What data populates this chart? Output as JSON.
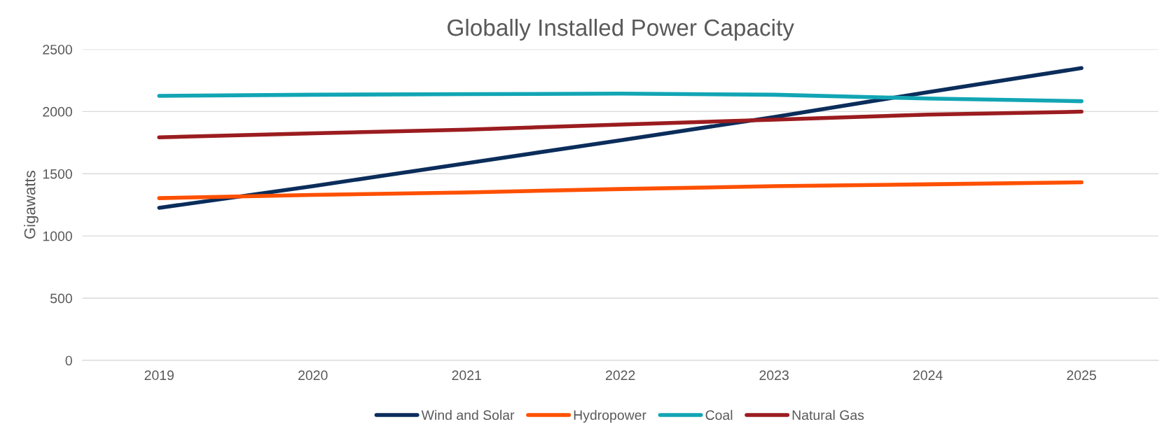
{
  "chart_data": {
    "type": "line",
    "title": "Globally Installed Power Capacity",
    "ylabel": "Gigawatts",
    "categories": [
      "2019",
      "2020",
      "2021",
      "2022",
      "2023",
      "2024",
      "2025"
    ],
    "series": [
      {
        "name": "Wind and Solar",
        "color": "#0b2d5b",
        "values": [
          1226,
          1400,
          1585,
          1769,
          1956,
          2156,
          2349
        ]
      },
      {
        "name": "Hydropower",
        "color": "#fe5000",
        "values": [
          1304,
          1330,
          1350,
          1377,
          1400,
          1415,
          1431
        ]
      },
      {
        "name": "Coal",
        "color": "#12a5b4",
        "values": [
          2126,
          2135,
          2140,
          2144,
          2135,
          2105,
          2083
        ]
      },
      {
        "name": "Natural Gas",
        "color": "#9b1c1f",
        "values": [
          1793,
          1825,
          1855,
          1895,
          1935,
          1975,
          1999
        ]
      }
    ],
    "ylim": [
      0,
      2500
    ],
    "yticks": [
      0,
      500,
      1000,
      1500,
      2000,
      2500
    ],
    "grid": "y",
    "legend": "bottom",
    "marker": "none",
    "line_style": "solid"
  }
}
